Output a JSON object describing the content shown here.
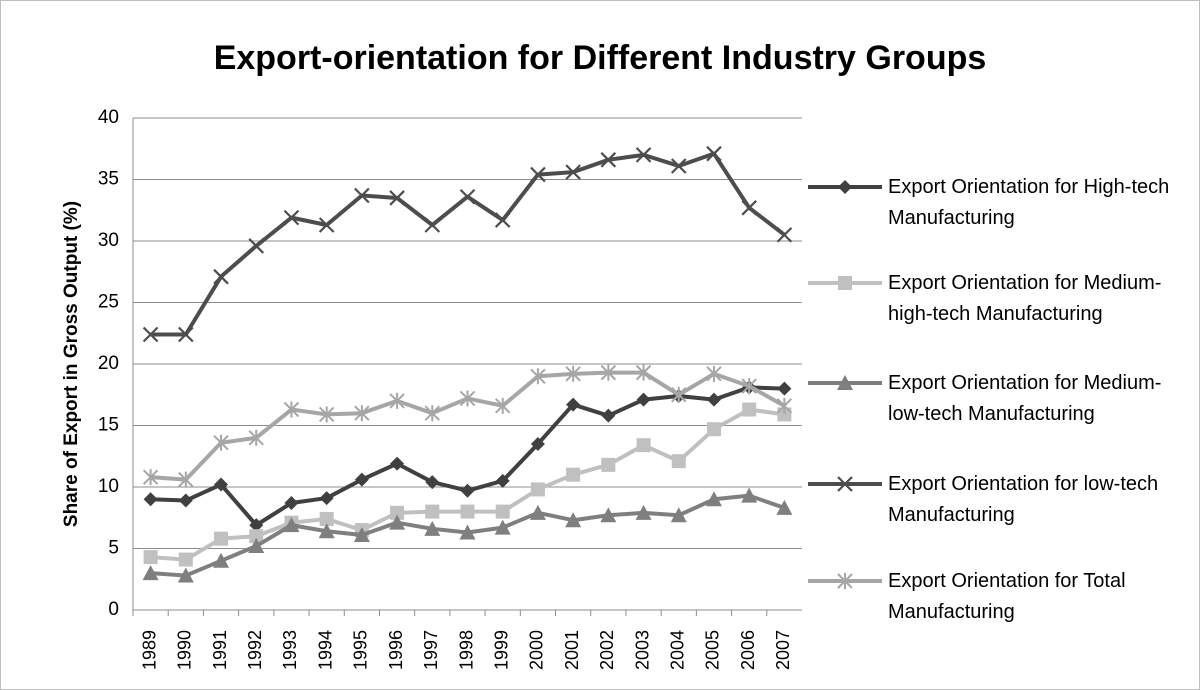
{
  "chart_data": {
    "type": "line",
    "title": "Export-orientation for Different Industry Groups",
    "y_label": "Share of Export in Gross Output (%)",
    "categories": [
      "1989",
      "1990",
      "1991",
      "1992",
      "1993",
      "1994",
      "1995",
      "1996",
      "1997",
      "1998",
      "1999",
      "2000",
      "2001",
      "2002",
      "2003",
      "2004",
      "2005",
      "2006",
      "2007"
    ],
    "ylim": [
      0,
      40
    ],
    "yticks": [
      0,
      5,
      10,
      15,
      20,
      25,
      30,
      35,
      40
    ],
    "grid": true,
    "legend": "right",
    "series": [
      {
        "name": "Export Orientation for High-tech Manufacturing",
        "color": "#404040",
        "marker": "diamond",
        "values": [
          9.0,
          8.9,
          10.2,
          6.9,
          8.7,
          9.1,
          10.6,
          11.9,
          10.4,
          9.7,
          10.5,
          13.5,
          16.7,
          15.8,
          17.1,
          17.4,
          17.1,
          18.1,
          18.0
        ]
      },
      {
        "name": "Export Orientation for Medium-high-tech Manufacturing",
        "color": "#c0c0c0",
        "marker": "square",
        "values": [
          4.3,
          4.1,
          5.8,
          6.0,
          7.1,
          7.4,
          6.5,
          7.9,
          8.0,
          8.0,
          8.0,
          9.8,
          11.0,
          11.8,
          13.4,
          12.1,
          14.7,
          16.3,
          15.9
        ]
      },
      {
        "name": "Export Orientation for Medium-low-tech Manufacturing",
        "color": "#7f7f7f",
        "marker": "triangle",
        "values": [
          3.0,
          2.8,
          4.0,
          5.2,
          6.9,
          6.4,
          6.1,
          7.1,
          6.6,
          6.3,
          6.7,
          7.9,
          7.3,
          7.7,
          7.9,
          7.7,
          9.0,
          9.3,
          8.3
        ]
      },
      {
        "name": "Export Orientation for low-tech Manufacturing",
        "color": "#4d4d4d",
        "marker": "x",
        "values": [
          22.4,
          22.4,
          27.1,
          29.6,
          31.9,
          31.3,
          33.7,
          33.5,
          31.3,
          33.6,
          31.7,
          35.4,
          35.6,
          36.6,
          37.0,
          36.1,
          37.1,
          32.7,
          30.5
        ]
      },
      {
        "name": "Export Orientation for Total Manufacturing",
        "color": "#a6a6a6",
        "marker": "star",
        "values": [
          10.8,
          10.6,
          13.6,
          14.0,
          16.3,
          15.9,
          16.0,
          17.0,
          16.0,
          17.2,
          16.6,
          19.0,
          19.2,
          19.3,
          19.3,
          17.5,
          19.2,
          18.2,
          16.6
        ]
      }
    ]
  }
}
